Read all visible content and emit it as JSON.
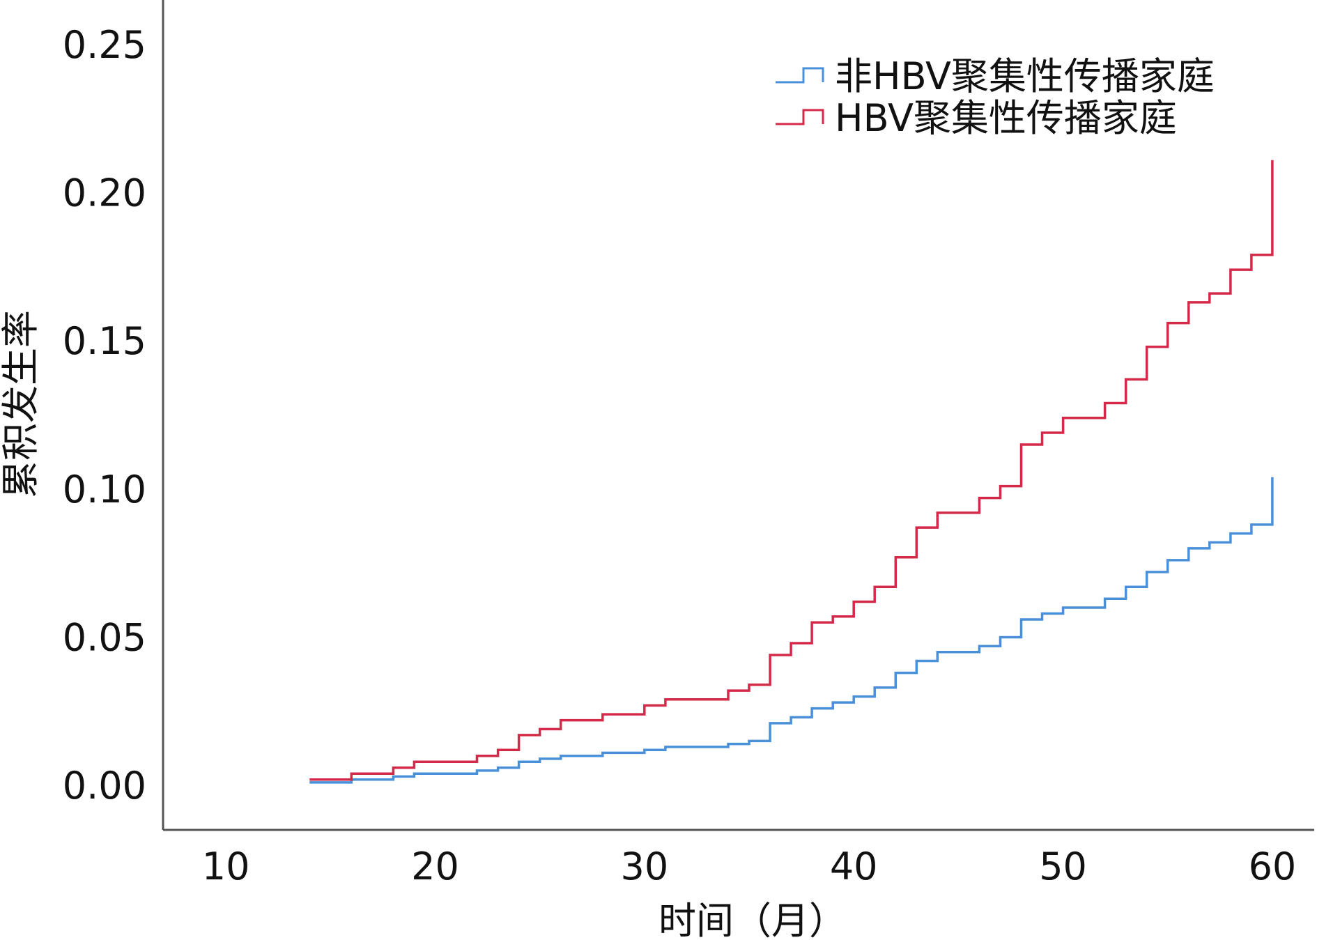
{
  "chart_data": {
    "type": "line",
    "step": true,
    "title": "",
    "xlabel": "时间（月）",
    "ylabel": "累积发生率",
    "xlim": [
      7,
      62
    ],
    "ylim": [
      -0.015,
      0.265
    ],
    "x_ticks": [
      10,
      20,
      30,
      40,
      50,
      60
    ],
    "x_tick_labels": [
      "10",
      "20",
      "30",
      "40",
      "50",
      "60"
    ],
    "y_ticks": [
      0.0,
      0.05,
      0.1,
      0.15,
      0.2,
      0.25
    ],
    "y_tick_labels": [
      "0.00",
      "0.05",
      "0.10",
      "0.15",
      "0.20",
      "0.25"
    ],
    "grid": false,
    "legend_position": "top-right",
    "series": [
      {
        "name": "非HBV聚集性传播家庭",
        "color": "#4a90d9",
        "x": [
          14,
          16,
          18,
          19,
          22,
          23,
          24,
          25,
          26,
          28,
          30,
          31,
          34,
          35,
          36,
          37,
          38,
          39,
          40,
          41,
          42,
          43,
          44,
          46,
          47,
          48,
          49,
          50,
          52,
          53,
          54,
          55,
          56,
          57,
          58,
          59,
          60,
          60
        ],
        "y": [
          0.001,
          0.002,
          0.003,
          0.004,
          0.005,
          0.006,
          0.008,
          0.009,
          0.01,
          0.011,
          0.012,
          0.013,
          0.014,
          0.015,
          0.021,
          0.023,
          0.026,
          0.028,
          0.03,
          0.033,
          0.038,
          0.042,
          0.045,
          0.047,
          0.05,
          0.056,
          0.058,
          0.06,
          0.063,
          0.067,
          0.072,
          0.076,
          0.08,
          0.082,
          0.085,
          0.088,
          0.089,
          0.104
        ]
      },
      {
        "name": "HBV聚集性传播家庭",
        "color": "#d42a4a",
        "x": [
          14,
          16,
          18,
          19,
          22,
          23,
          24,
          25,
          26,
          28,
          30,
          31,
          34,
          35,
          36,
          37,
          38,
          39,
          40,
          41,
          42,
          43,
          44,
          46,
          47,
          48,
          49,
          50,
          52,
          53,
          54,
          55,
          56,
          57,
          58,
          59,
          60,
          60
        ],
        "y": [
          0.002,
          0.004,
          0.006,
          0.008,
          0.01,
          0.012,
          0.017,
          0.019,
          0.022,
          0.024,
          0.027,
          0.029,
          0.032,
          0.034,
          0.044,
          0.048,
          0.055,
          0.057,
          0.062,
          0.067,
          0.077,
          0.087,
          0.092,
          0.097,
          0.101,
          0.115,
          0.119,
          0.124,
          0.129,
          0.137,
          0.148,
          0.156,
          0.163,
          0.166,
          0.174,
          0.179,
          0.18,
          0.211
        ]
      }
    ]
  }
}
